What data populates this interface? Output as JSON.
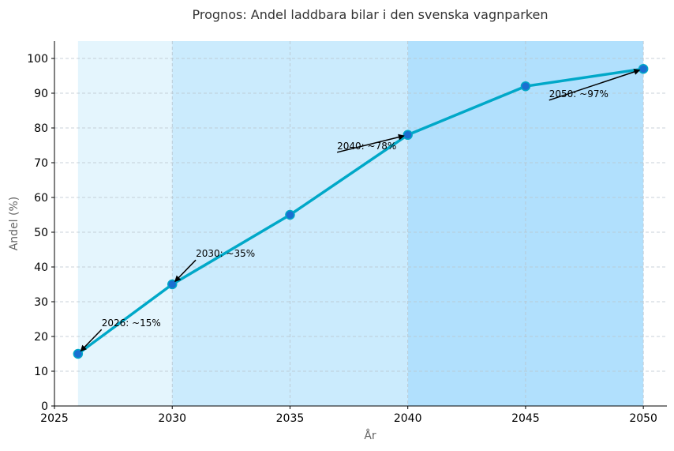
{
  "chart_data": {
    "type": "line",
    "title": "Prognos: Andel laddbara bilar i den svenska vagnparken",
    "xlabel": "År",
    "ylabel": "Andel (%)",
    "xlim": [
      2025,
      2051
    ],
    "ylim": [
      0,
      105
    ],
    "xticks": [
      2025,
      2030,
      2035,
      2040,
      2045,
      2050
    ],
    "yticks": [
      0,
      10,
      20,
      30,
      40,
      50,
      60,
      70,
      80,
      90,
      100
    ],
    "grid": true,
    "series": [
      {
        "x": [
          2026,
          2030,
          2035,
          2040,
          2045,
          2050
        ],
        "values": [
          15,
          35,
          55,
          78,
          92,
          97
        ],
        "color": "#00a8c8",
        "marker_color": "#1a6fd1"
      }
    ],
    "background_bands": [
      {
        "from": 2026,
        "to": 2030,
        "color": "#e4f5fd"
      },
      {
        "from": 2030,
        "to": 2040,
        "color": "#cbebfd"
      },
      {
        "from": 2040,
        "to": 2050,
        "color": "#b1e0fd"
      }
    ],
    "annotations": [
      {
        "text": "2026: ~15%",
        "x": 2026,
        "y": 15,
        "text_x": 2027,
        "text_y": 22
      },
      {
        "text": "2030: ~35%",
        "x": 2030,
        "y": 35,
        "text_x": 2031,
        "text_y": 42
      },
      {
        "text": "2040: ~78%",
        "x": 2040,
        "y": 78,
        "text_x": 2037,
        "text_y": 73
      },
      {
        "text": "2050: ~97%",
        "x": 2050,
        "y": 97,
        "text_x": 2046,
        "text_y": 88
      }
    ]
  }
}
